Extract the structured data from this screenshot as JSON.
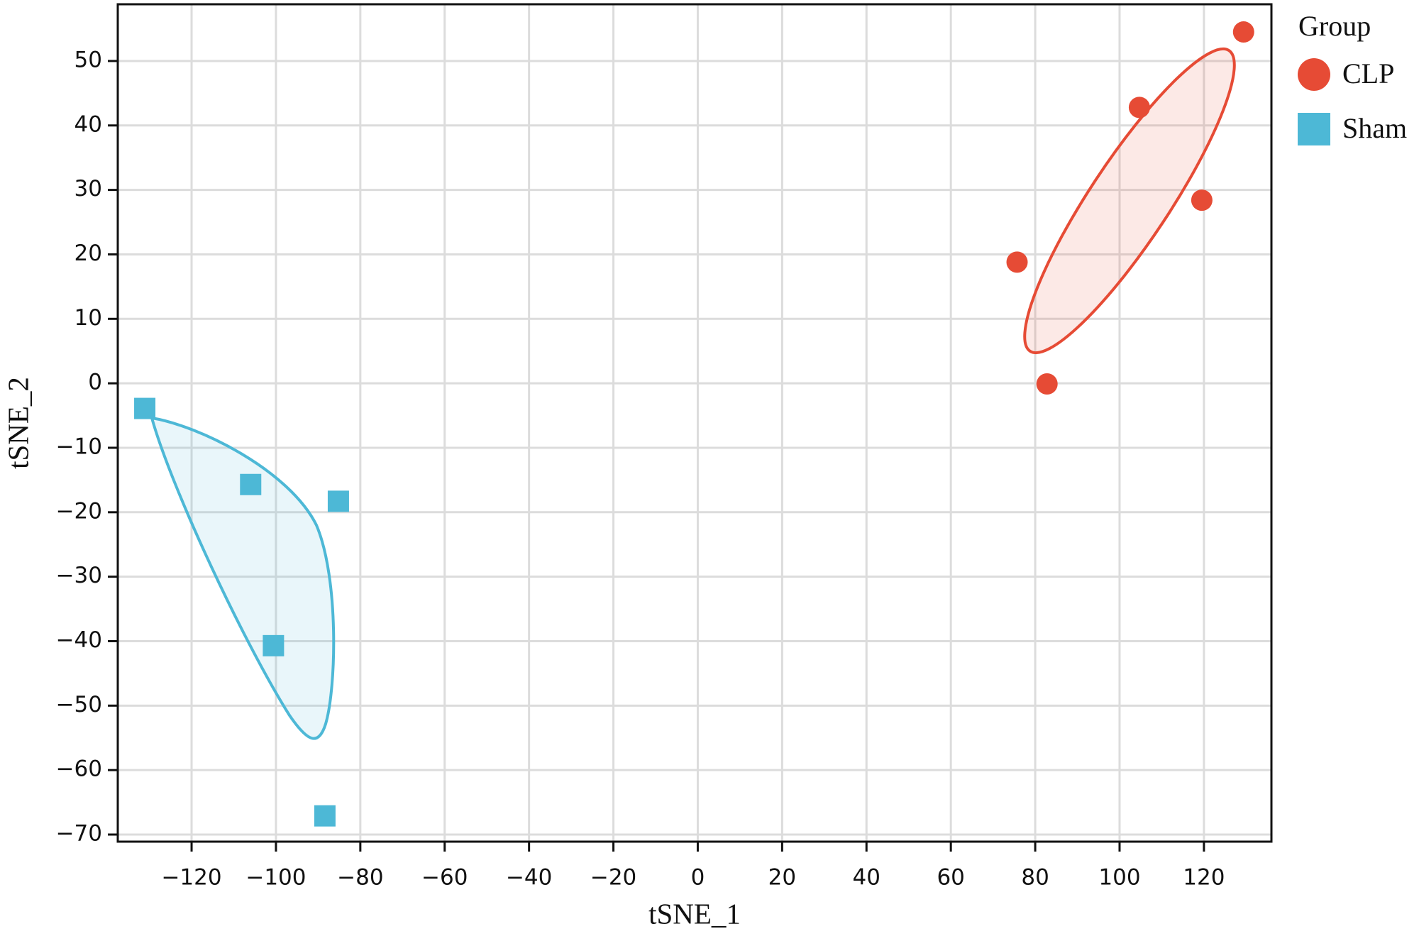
{
  "chart_data": {
    "type": "scatter",
    "x_label": "tSNE_1",
    "y_label": "tSNE_2",
    "legend_title": "Group",
    "xlim": [
      -137.5,
      136
    ],
    "ylim": [
      -71.1,
      58.8
    ],
    "xticks": [
      {
        "value": -120,
        "label": "−120"
      },
      {
        "value": -100,
        "label": "−100"
      },
      {
        "value": -80,
        "label": "−80"
      },
      {
        "value": -60,
        "label": "−60"
      },
      {
        "value": -40,
        "label": "−40"
      },
      {
        "value": -20,
        "label": "−20"
      },
      0,
      20,
      40,
      60,
      80,
      100,
      120
    ],
    "yticks": [
      {
        "value": -70,
        "label": "−70"
      },
      {
        "value": -60,
        "label": "−60"
      },
      {
        "value": -50,
        "label": "−50"
      },
      {
        "value": -40,
        "label": "−40"
      },
      {
        "value": -30,
        "label": "−30"
      },
      {
        "value": -20,
        "label": "−20"
      },
      {
        "value": -10,
        "label": "−10"
      },
      0,
      10,
      20,
      30,
      40,
      50
    ],
    "grid": true,
    "legend": "right",
    "series": [
      {
        "name": "CLP",
        "color": "#e64b35",
        "marker": "circle",
        "x": [
          129.4,
          104.7,
          119.5,
          75.7,
          82.8
        ],
        "values": [
          54.5,
          42.8,
          28.4,
          18.8,
          -0.1
        ]
      },
      {
        "name": "Sham",
        "color": "#4db8d6",
        "marker": "square",
        "x": [
          -131.1,
          -106,
          -85.2,
          -100.6,
          -88.4
        ],
        "values": [
          -3.9,
          -15.7,
          -18.3,
          -40.7,
          -67.1
        ]
      }
    ]
  }
}
